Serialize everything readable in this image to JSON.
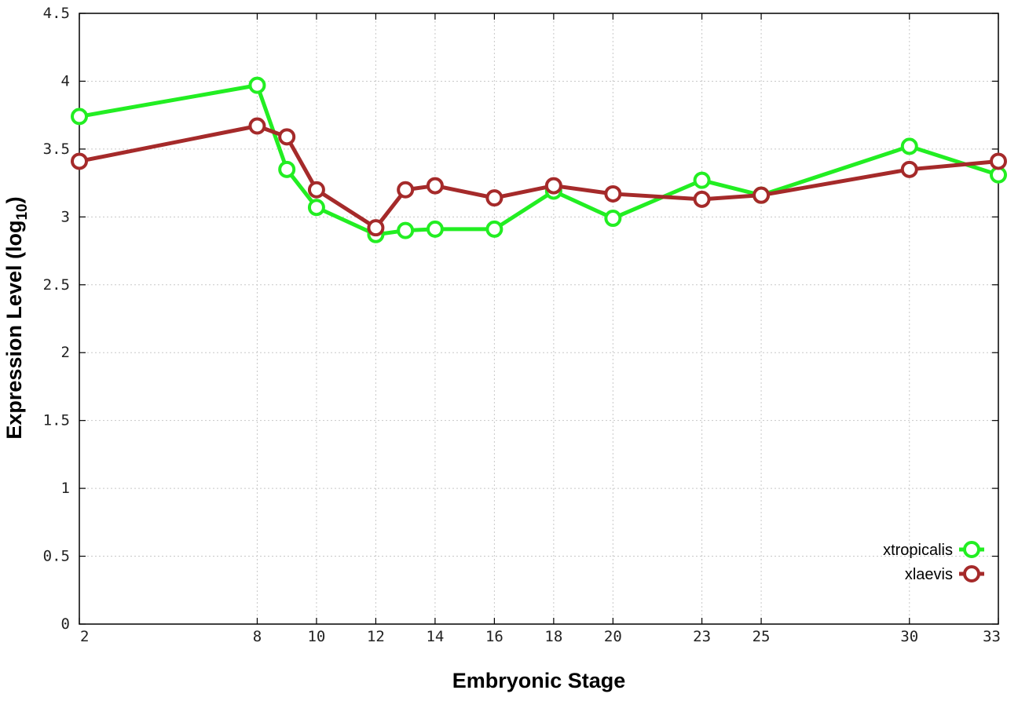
{
  "chart_data": {
    "type": "line",
    "title": "",
    "xlabel": "Embryonic Stage",
    "ylabel_main": "Expression Level (log",
    "ylabel_sub": "10",
    "ylabel_close": ")",
    "ylim": [
      0,
      4.5
    ],
    "yticks": [
      0,
      0.5,
      1,
      1.5,
      2,
      2.5,
      3,
      3.5,
      4,
      4.5
    ],
    "ytick_labels": [
      "0",
      "0.5",
      "1",
      "1.5",
      "2",
      "2.5",
      "3",
      "3.5",
      "4",
      "4.5"
    ],
    "x": [
      2,
      8,
      9,
      10,
      12,
      13,
      14,
      16,
      18,
      20,
      23,
      25,
      30,
      33
    ],
    "xticks": [
      2,
      8,
      10,
      12,
      14,
      16,
      18,
      20,
      23,
      25,
      30,
      33
    ],
    "xtick_labels": [
      "2",
      "8",
      "10",
      "12",
      "14",
      "16",
      "18",
      "20",
      "23",
      "25",
      "30",
      "33"
    ],
    "grid": true,
    "legend_position": "bottom-right",
    "series": [
      {
        "name": "xtropicalis",
        "color": "#22ee22",
        "values": [
          3.74,
          3.97,
          3.35,
          3.07,
          2.87,
          2.9,
          2.91,
          2.91,
          3.19,
          2.99,
          3.27,
          3.16,
          3.52,
          3.31
        ]
      },
      {
        "name": "xlaevis",
        "color": "#a52a2a",
        "values": [
          3.41,
          3.67,
          3.59,
          3.2,
          2.92,
          3.2,
          3.23,
          3.14,
          3.23,
          3.17,
          3.13,
          3.16,
          3.35,
          3.41
        ]
      }
    ]
  }
}
